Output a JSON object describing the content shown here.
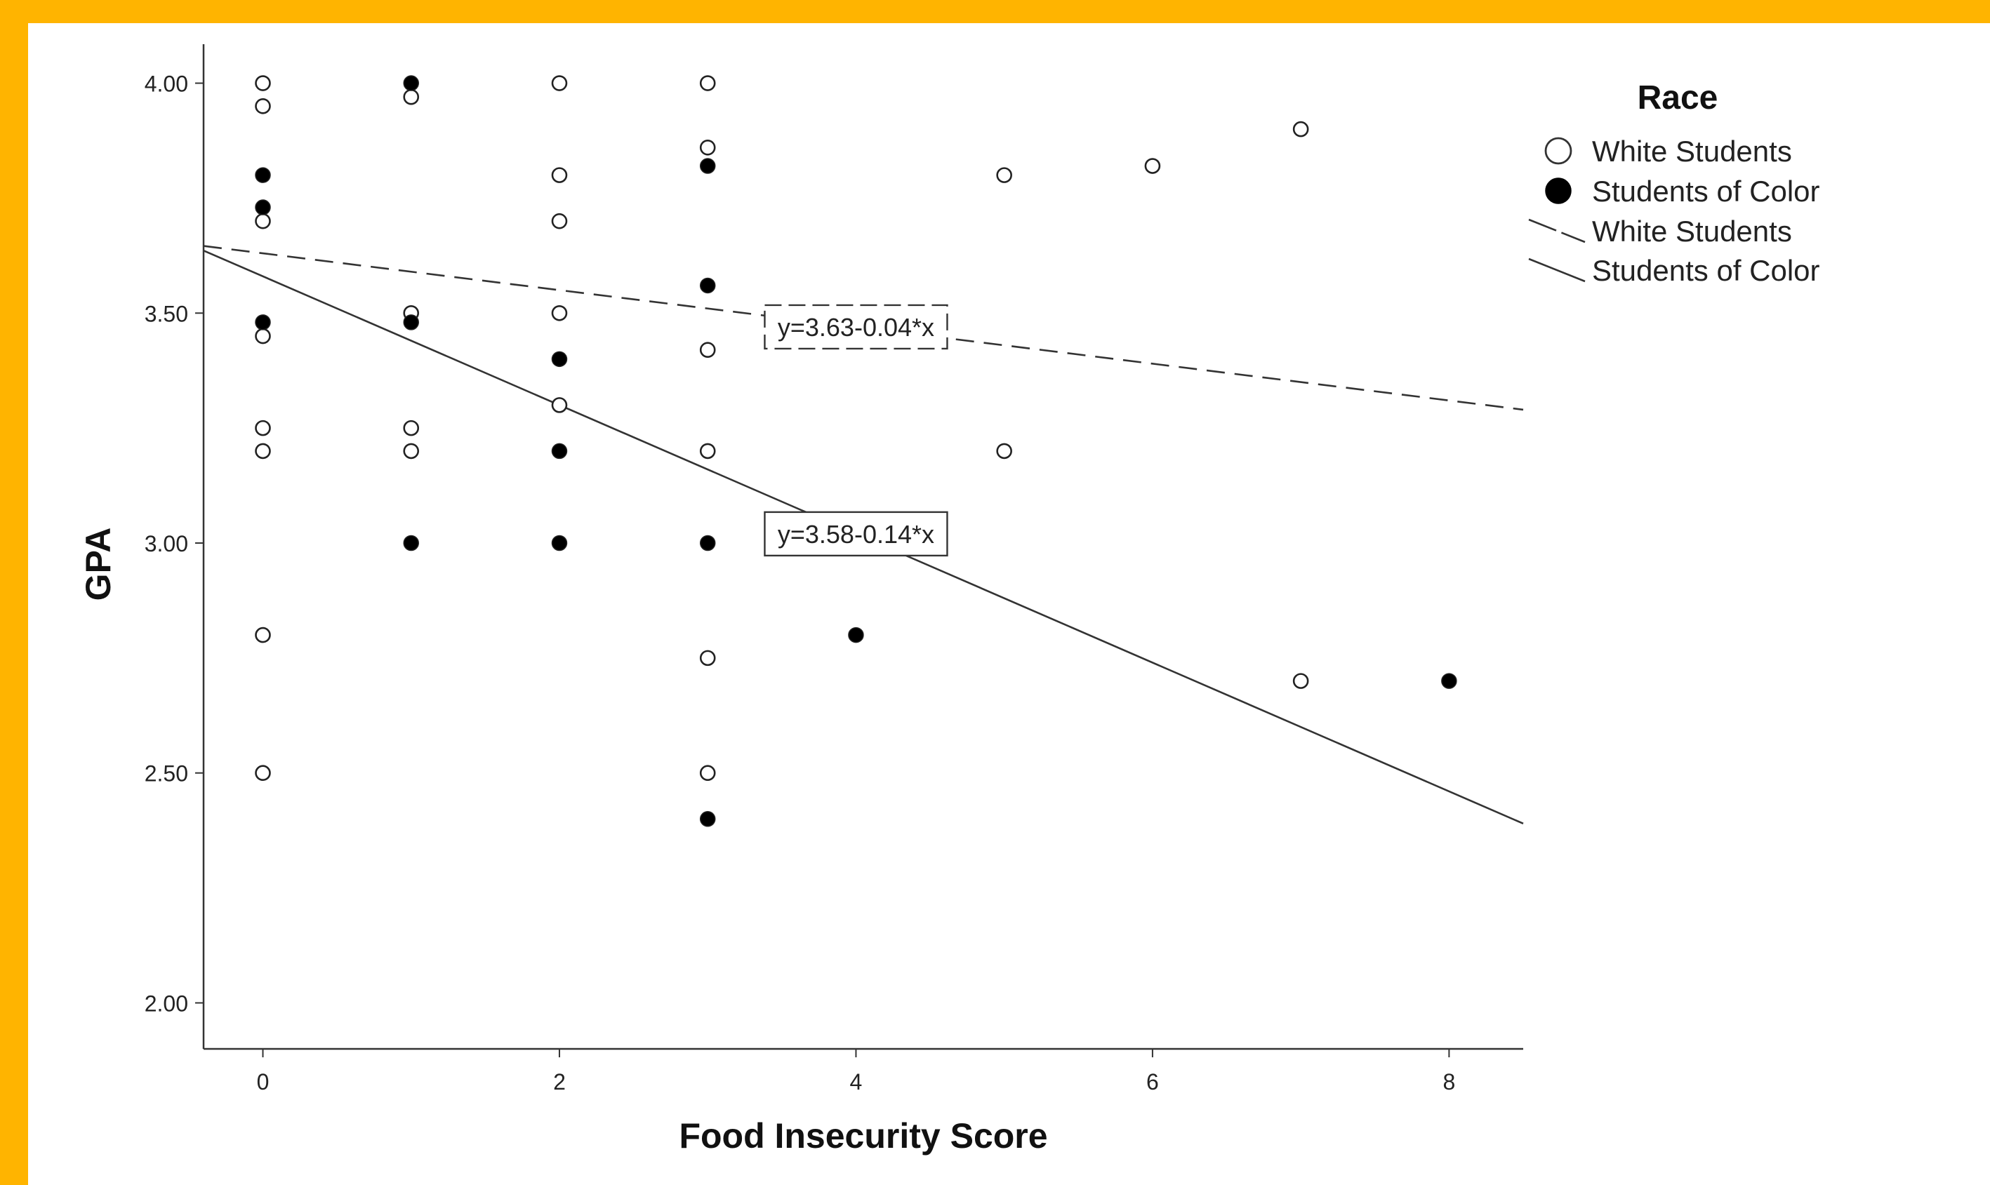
{
  "chart_data": {
    "type": "scatter",
    "xlabel": "Food Insecurity Score",
    "ylabel": "GPA",
    "xlim": [
      -0.4,
      8.5
    ],
    "ylim": [
      1.9,
      4.1
    ],
    "x_ticks": [
      0,
      2,
      4,
      6,
      8
    ],
    "y_ticks": [
      2.0,
      2.5,
      3.0,
      3.5,
      4.0
    ],
    "x_tick_labels": [
      "0",
      "2",
      "4",
      "6",
      "8"
    ],
    "y_tick_labels": [
      "2.00",
      "2.50",
      "3.00",
      "3.50",
      "4.00"
    ],
    "grid": false,
    "legend": {
      "title": "Race",
      "placement": "top-right",
      "entries": [
        "White Students",
        "Students of Color",
        "White Students",
        "Students of Color"
      ]
    },
    "series": [
      {
        "name": "White Students",
        "marker": "open-circle",
        "points": [
          {
            "x": 0,
            "y": 4.0
          },
          {
            "x": 0,
            "y": 3.95
          },
          {
            "x": 0,
            "y": 3.7
          },
          {
            "x": 0,
            "y": 3.45
          },
          {
            "x": 0,
            "y": 3.25
          },
          {
            "x": 0,
            "y": 3.2
          },
          {
            "x": 0,
            "y": 2.8
          },
          {
            "x": 0,
            "y": 2.5
          },
          {
            "x": 1,
            "y": 3.97
          },
          {
            "x": 1,
            "y": 3.5
          },
          {
            "x": 1,
            "y": 3.25
          },
          {
            "x": 1,
            "y": 3.2
          },
          {
            "x": 2,
            "y": 4.0
          },
          {
            "x": 2,
            "y": 3.8
          },
          {
            "x": 2,
            "y": 3.7
          },
          {
            "x": 2,
            "y": 3.5
          },
          {
            "x": 2,
            "y": 3.3
          },
          {
            "x": 3,
            "y": 4.0
          },
          {
            "x": 3,
            "y": 3.86
          },
          {
            "x": 3,
            "y": 3.42
          },
          {
            "x": 3,
            "y": 3.2
          },
          {
            "x": 3,
            "y": 2.75
          },
          {
            "x": 3,
            "y": 2.5
          },
          {
            "x": 5,
            "y": 3.8
          },
          {
            "x": 5,
            "y": 3.2
          },
          {
            "x": 6,
            "y": 3.82
          },
          {
            "x": 7,
            "y": 3.9
          },
          {
            "x": 7,
            "y": 2.7
          }
        ]
      },
      {
        "name": "Students of Color",
        "marker": "filled-circle",
        "points": [
          {
            "x": 0,
            "y": 3.8
          },
          {
            "x": 0,
            "y": 3.73
          },
          {
            "x": 0,
            "y": 3.48
          },
          {
            "x": 1,
            "y": 4.0
          },
          {
            "x": 1,
            "y": 3.48
          },
          {
            "x": 1,
            "y": 3.0
          },
          {
            "x": 2,
            "y": 3.4
          },
          {
            "x": 2,
            "y": 3.2
          },
          {
            "x": 2,
            "y": 3.0
          },
          {
            "x": 3,
            "y": 3.82
          },
          {
            "x": 3,
            "y": 3.56
          },
          {
            "x": 3,
            "y": 3.0
          },
          {
            "x": 3,
            "y": 2.4
          },
          {
            "x": 4,
            "y": 2.8
          },
          {
            "x": 8,
            "y": 2.7
          }
        ]
      }
    ],
    "fit_lines": [
      {
        "series": "White Students",
        "style": "dashed",
        "intercept": 3.63,
        "slope": -0.04,
        "label": "y=3.63-0.04*x",
        "label_x": 4.0,
        "label_y": 3.47
      },
      {
        "series": "Students of Color",
        "style": "solid",
        "intercept": 3.58,
        "slope": -0.14,
        "label": "y=3.58-0.14*x",
        "label_x": 4.0,
        "label_y": 3.02
      }
    ]
  }
}
